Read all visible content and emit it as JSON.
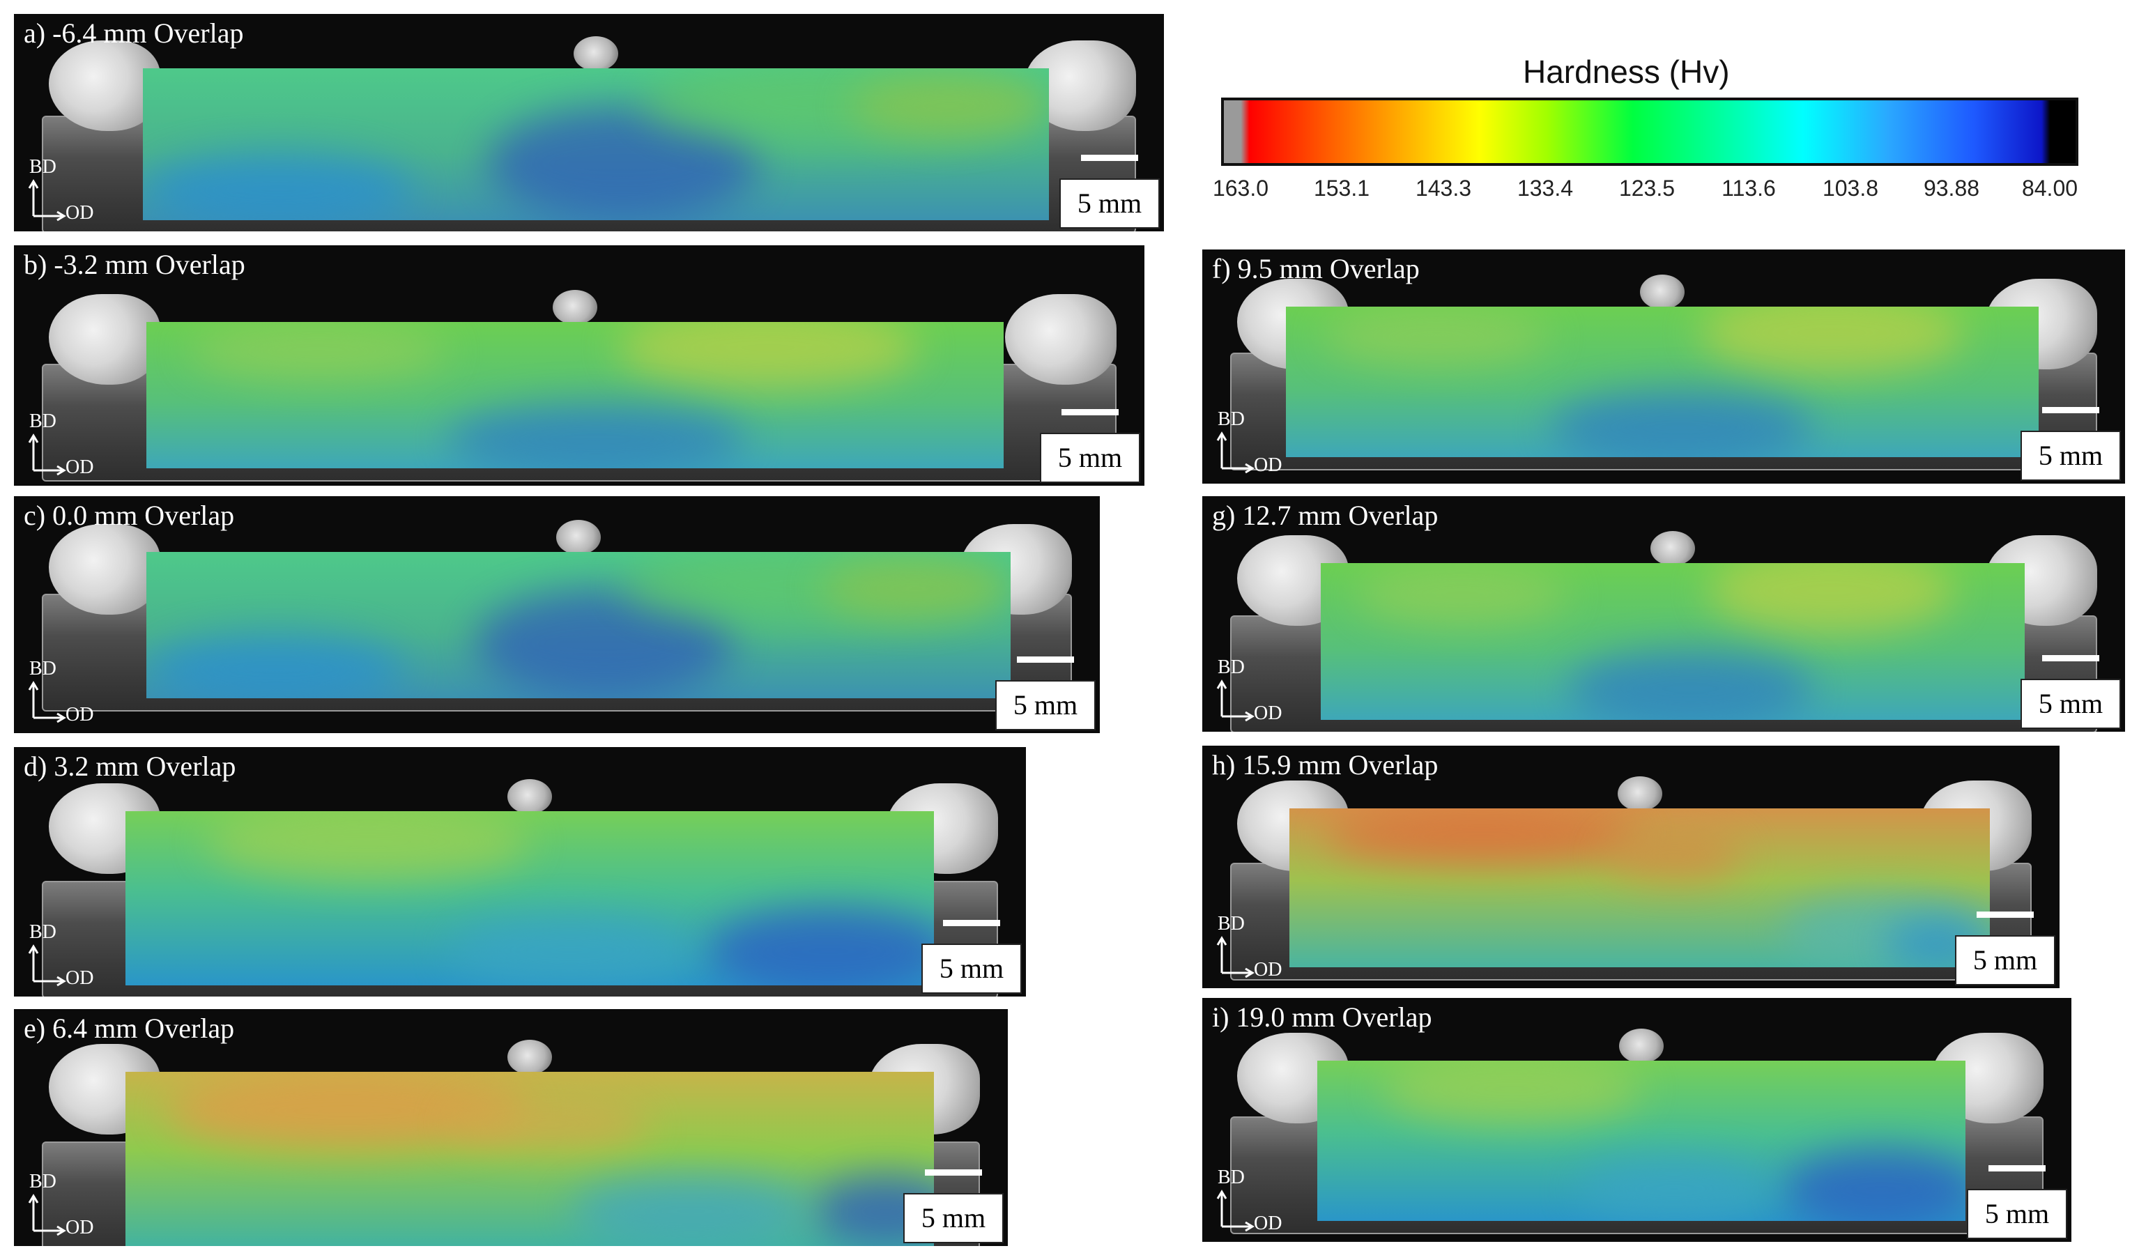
{
  "colorbar": {
    "title": "Hardness (Hv)",
    "ticks": [
      "163.0",
      "153.1",
      "143.3",
      "133.4",
      "123.5",
      "113.6",
      "103.8",
      "93.88",
      "84.00"
    ],
    "gradient_colors": [
      "#9a9a9a",
      "#ff0000",
      "#ff5a00",
      "#ffa500",
      "#ffff00",
      "#a0ff00",
      "#00ff40",
      "#00ffb0",
      "#00ffff",
      "#2aa8ff",
      "#1e5aff",
      "#0d16c8",
      "#000000"
    ]
  },
  "axes_labels": {
    "build_direction": "BD",
    "other_direction": "OD"
  },
  "scale_bar_label": "5 mm",
  "panels": [
    {
      "label": "a) -6.4 mm Overlap",
      "tone": "blue-center"
    },
    {
      "label": "b) -3.2 mm Overlap",
      "tone": "green"
    },
    {
      "label": "c) 0.0 mm Overlap",
      "tone": "blue-center"
    },
    {
      "label": "d) 3.2 mm Overlap",
      "tone": "green-blue"
    },
    {
      "label": "e) 6.4 mm Overlap",
      "tone": "yellow-top"
    },
    {
      "label": "f) 9.5 mm Overlap",
      "tone": "green"
    },
    {
      "label": "g) 12.7 mm Overlap",
      "tone": "green"
    },
    {
      "label": "h) 15.9 mm Overlap",
      "tone": "orange-top"
    },
    {
      "label": "i) 19.0 mm Overlap",
      "tone": "green-blue"
    }
  ]
}
